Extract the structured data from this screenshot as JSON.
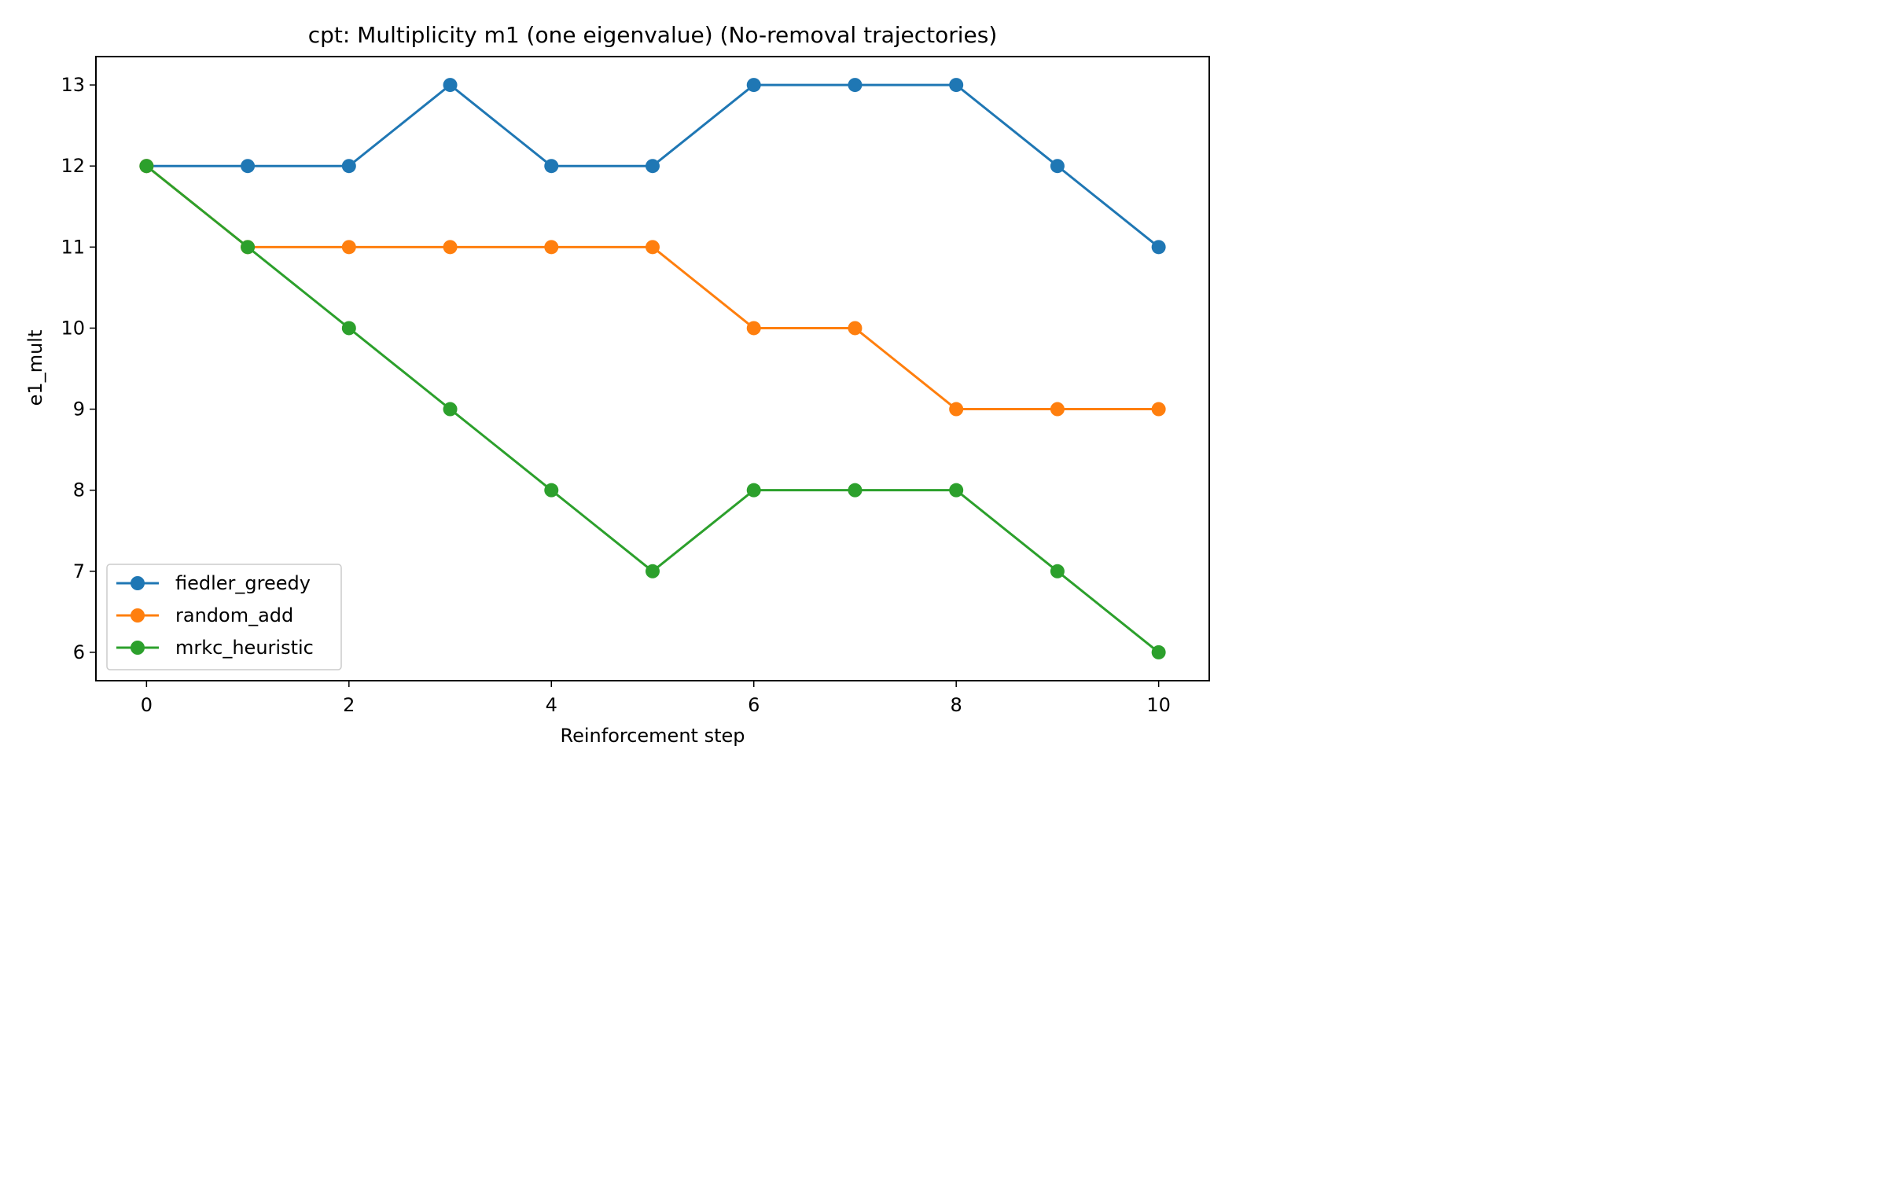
{
  "chart_data": {
    "type": "line",
    "title": "cpt: Multiplicity m1 (one eigenvalue) (No-removal trajectories)",
    "xlabel": "Reinforcement step",
    "ylabel": "e1_mult",
    "x": [
      0,
      1,
      2,
      3,
      4,
      5,
      6,
      7,
      8,
      9,
      10
    ],
    "xlim": [
      -0.5,
      10.5
    ],
    "ylim": [
      5.65,
      13.35
    ],
    "xticks": [
      0,
      2,
      4,
      6,
      8,
      10
    ],
    "yticks": [
      6,
      7,
      8,
      9,
      10,
      11,
      12,
      13
    ],
    "grid": false,
    "legend_position": "lower-left",
    "series": [
      {
        "name": "fiedler_greedy",
        "color": "#1f77b4",
        "values": [
          12,
          12,
          12,
          13,
          12,
          12,
          13,
          13,
          13,
          12,
          11
        ]
      },
      {
        "name": "random_add",
        "color": "#ff7f0e",
        "values": [
          12,
          11,
          11,
          11,
          11,
          11,
          10,
          10,
          9,
          9,
          9
        ]
      },
      {
        "name": "mrkc_heuristic",
        "color": "#2ca02c",
        "values": [
          12,
          11,
          10,
          9,
          8,
          7,
          8,
          8,
          8,
          7,
          6
        ]
      }
    ]
  }
}
